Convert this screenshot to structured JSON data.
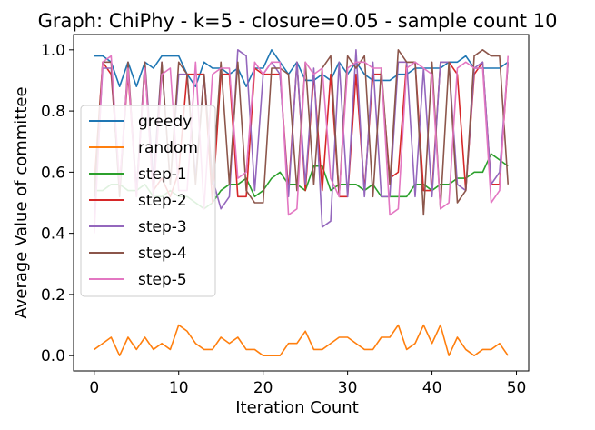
{
  "chart_data": {
    "type": "line",
    "title": "Graph: ChiPhy - k=5 - closure=0.05 - sample count 10",
    "xlabel": "Iteration Count",
    "ylabel": "Average Value of committee",
    "xlim": [
      -2.45,
      51.45
    ],
    "ylim": [
      -0.05,
      1.05
    ],
    "xticks": [
      "0",
      "10",
      "20",
      "30",
      "40",
      "50"
    ],
    "yticks": [
      "0.0",
      "0.2",
      "0.4",
      "0.6",
      "0.8",
      "1.0"
    ],
    "grid": false,
    "legend_position": "center-left",
    "x": [
      0,
      1,
      2,
      3,
      4,
      5,
      6,
      7,
      8,
      9,
      10,
      11,
      12,
      13,
      14,
      15,
      16,
      17,
      18,
      19,
      20,
      21,
      22,
      23,
      24,
      25,
      26,
      27,
      28,
      29,
      30,
      31,
      32,
      33,
      34,
      35,
      36,
      37,
      38,
      39,
      40,
      41,
      42,
      43,
      44,
      45,
      46,
      47,
      48,
      49
    ],
    "series": [
      {
        "name": "greedy",
        "color": "#1f77b4",
        "values": [
          0.98,
          0.98,
          0.96,
          0.88,
          0.96,
          0.88,
          0.96,
          0.94,
          0.98,
          0.98,
          0.98,
          0.92,
          0.88,
          0.96,
          0.94,
          0.94,
          0.92,
          0.94,
          0.88,
          0.94,
          0.94,
          1.0,
          0.96,
          0.92,
          0.96,
          0.9,
          0.9,
          0.92,
          0.9,
          0.96,
          0.92,
          0.96,
          0.92,
          0.9,
          0.9,
          0.9,
          0.92,
          0.92,
          0.94,
          0.94,
          0.94,
          0.94,
          0.96,
          0.96,
          0.98,
          0.94,
          0.94,
          0.94,
          0.94,
          0.96
        ]
      },
      {
        "name": "random",
        "color": "#ff7f0e",
        "values": [
          0.02,
          0.04,
          0.06,
          0.0,
          0.06,
          0.02,
          0.06,
          0.02,
          0.04,
          0.02,
          0.1,
          0.08,
          0.04,
          0.02,
          0.02,
          0.06,
          0.04,
          0.06,
          0.02,
          0.02,
          0.0,
          0.0,
          0.0,
          0.04,
          0.04,
          0.08,
          0.02,
          0.02,
          0.04,
          0.06,
          0.06,
          0.04,
          0.02,
          0.02,
          0.06,
          0.06,
          0.1,
          0.02,
          0.04,
          0.1,
          0.04,
          0.1,
          0.0,
          0.06,
          0.02,
          0.0,
          0.02,
          0.02,
          0.04,
          0.0
        ]
      },
      {
        "name": "step-1",
        "color": "#2ca02c",
        "values": [
          0.54,
          0.54,
          0.56,
          0.56,
          0.54,
          0.54,
          0.56,
          0.52,
          0.52,
          0.54,
          0.52,
          0.52,
          0.5,
          0.48,
          0.5,
          0.54,
          0.56,
          0.56,
          0.58,
          0.52,
          0.54,
          0.58,
          0.6,
          0.56,
          0.56,
          0.54,
          0.62,
          0.62,
          0.54,
          0.56,
          0.56,
          0.56,
          0.54,
          0.56,
          0.52,
          0.52,
          0.52,
          0.52,
          0.56,
          0.56,
          0.54,
          0.56,
          0.56,
          0.58,
          0.58,
          0.6,
          0.6,
          0.66,
          0.64,
          0.62
        ]
      },
      {
        "name": "step-2",
        "color": "#d62728",
        "values": [
          0.56,
          0.96,
          0.92,
          0.56,
          0.92,
          0.54,
          0.94,
          0.54,
          0.58,
          0.52,
          0.6,
          0.92,
          0.92,
          0.92,
          0.5,
          0.92,
          0.92,
          0.52,
          0.52,
          0.94,
          0.92,
          0.92,
          0.92,
          0.54,
          0.96,
          0.54,
          0.92,
          0.54,
          0.92,
          0.52,
          0.52,
          0.92,
          0.54,
          0.92,
          0.92,
          0.58,
          0.6,
          0.96,
          0.96,
          0.54,
          0.54,
          0.96,
          0.96,
          0.92,
          0.54,
          0.92,
          0.96,
          0.56,
          0.56,
          0.96
        ]
      },
      {
        "name": "step-3",
        "color": "#9467bd",
        "values": [
          0.44,
          0.94,
          0.94,
          0.54,
          0.94,
          0.54,
          0.96,
          0.58,
          0.96,
          0.56,
          0.92,
          0.92,
          0.58,
          0.92,
          0.58,
          0.48,
          0.52,
          1.0,
          0.98,
          0.54,
          0.92,
          0.96,
          0.92,
          0.52,
          0.96,
          0.56,
          0.94,
          0.42,
          0.44,
          0.96,
          0.52,
          1.0,
          0.52,
          0.96,
          0.52,
          0.52,
          0.96,
          0.96,
          0.52,
          0.94,
          0.52,
          0.96,
          0.96,
          0.56,
          0.54,
          0.94,
          0.96,
          0.56,
          0.6,
          0.96
        ]
      },
      {
        "name": "step-4",
        "color": "#8c564b",
        "values": [
          0.52,
          0.96,
          0.96,
          0.52,
          0.96,
          0.52,
          0.96,
          0.52,
          0.96,
          0.56,
          0.96,
          0.92,
          0.56,
          0.92,
          0.56,
          0.96,
          0.56,
          0.96,
          0.54,
          0.5,
          0.5,
          0.94,
          0.94,
          0.92,
          0.54,
          0.96,
          0.56,
          0.94,
          0.98,
          0.52,
          0.98,
          0.94,
          0.98,
          0.52,
          0.94,
          0.56,
          1.0,
          0.96,
          0.96,
          0.46,
          0.96,
          0.48,
          0.96,
          0.5,
          0.54,
          0.98,
          1.0,
          0.98,
          0.98,
          0.56
        ]
      },
      {
        "name": "step-5",
        "color": "#e377c2",
        "values": [
          0.4,
          0.96,
          0.98,
          0.56,
          0.94,
          0.52,
          0.94,
          0.52,
          0.92,
          0.94,
          0.54,
          0.54,
          0.96,
          0.48,
          0.92,
          0.94,
          0.94,
          0.58,
          0.6,
          0.96,
          0.92,
          0.96,
          0.96,
          0.46,
          0.48,
          0.96,
          0.92,
          0.94,
          0.58,
          0.52,
          0.94,
          0.96,
          0.96,
          0.94,
          0.94,
          0.46,
          0.48,
          0.94,
          0.96,
          0.94,
          0.92,
          0.48,
          0.5,
          0.94,
          0.96,
          0.94,
          0.94,
          0.5,
          0.54,
          0.98
        ]
      }
    ]
  }
}
